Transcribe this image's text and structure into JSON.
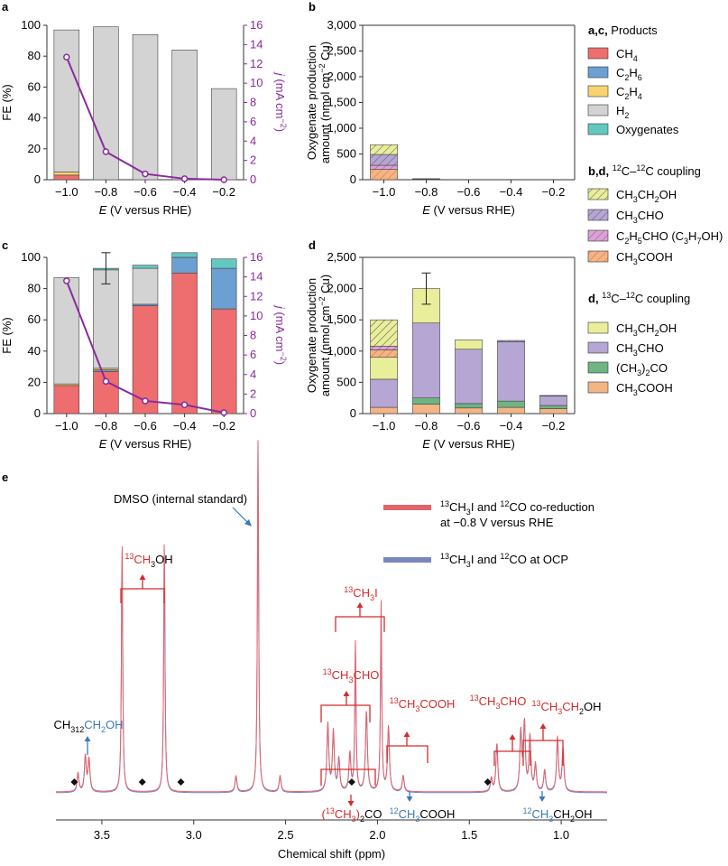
{
  "colors": {
    "ch4": "#ee6d6e",
    "c2h6": "#6c9fd2",
    "c2h4": "#f7d471",
    "h2": "#d3d3d3",
    "oxygenates": "#63c8c0",
    "line": "#8a2a9e",
    "ethanol": "#e8ee9a",
    "acetaldehyde": "#b5a6d3",
    "acetone": "#6fb483",
    "acetic": "#f3b486",
    "propanal": "#d9a3d3",
    "spec_red": "#e0646c",
    "spec_blue": "#7a86c0",
    "label_red": "#d62b2b",
    "label_blue": "#3a79b7"
  },
  "panel_labels": {
    "a": "a",
    "b": "b",
    "c": "c",
    "d": "d",
    "e": "e"
  },
  "legend": {
    "ac_prefix": "a,c,",
    "ac_title": " Products",
    "products": [
      {
        "key": "ch4",
        "main": "CH",
        "sub": "4",
        "tail": ""
      },
      {
        "key": "c2h6",
        "main": "C",
        "sub": "2",
        "mid": "H",
        "sub2": "6"
      },
      {
        "key": "c2h4",
        "main": "C",
        "sub": "2",
        "mid": "H",
        "sub2": "4"
      },
      {
        "key": "h2",
        "main": "H",
        "sub": "2",
        "tail": ""
      },
      {
        "key": "oxygenates",
        "main": "Oxygenates",
        "sub": "",
        "tail": ""
      }
    ],
    "bd_prefix": "b,d,",
    "bd_sup1": "12",
    "bd_mid": "C–",
    "bd_sup2": "12",
    "bd_tail": "C coupling",
    "bd_items": [
      "CH3CH2OH",
      "CH3CHO",
      "C2H5CHO (C3H7OH)",
      "CH3COOH"
    ],
    "d_prefix": "d,",
    "d_sup1": "13",
    "d_mid": "C–",
    "d_sup2": "12",
    "d_tail": "C coupling",
    "d_items": [
      "CH3CH2OH",
      "CH3CHO",
      "(CH3)2CO",
      "CH3COOH"
    ]
  },
  "chart_data": [
    {
      "panel": "a",
      "type": "bar",
      "categories": [
        "−1.0",
        "−0.8",
        "−0.6",
        "−0.4",
        "−0.2"
      ],
      "series": [
        {
          "name": "CH4",
          "values": [
            3,
            0,
            0,
            0,
            0
          ]
        },
        {
          "name": "C2H6",
          "values": [
            0,
            0,
            0,
            0,
            0
          ]
        },
        {
          "name": "C2H4",
          "values": [
            2,
            0,
            0,
            0,
            0
          ]
        },
        {
          "name": "H2",
          "values": [
            92,
            99,
            94,
            84,
            59
          ]
        },
        {
          "name": "Oxygenates",
          "values": [
            0,
            0,
            0,
            0,
            0
          ]
        }
      ],
      "line": {
        "name": "j (mA cm−2)",
        "x": [
          -1.0,
          -0.8,
          -0.6,
          -0.4,
          -0.2
        ],
        "values": [
          12.7,
          2.9,
          0.6,
          0.1,
          0.0
        ]
      },
      "ylim": [
        0,
        100
      ],
      "y2lim": [
        0,
        16
      ],
      "yticks": [
        "0",
        "20",
        "40",
        "60",
        "80",
        "100"
      ],
      "y2ticks": [
        "0",
        "2",
        "4",
        "6",
        "8",
        "10",
        "12",
        "14",
        "16"
      ],
      "ylabel": "FE (%)",
      "y2label_main": "j (mA cm",
      "y2label_sup": "−2",
      "y2label_end": ")",
      "xlabel_italic": "E",
      "xlabel_rest": " (V versus RHE)"
    },
    {
      "panel": "b",
      "type": "bar",
      "categories": [
        "−1.0",
        "−0.8",
        "−0.6",
        "−0.4",
        "−0.2"
      ],
      "series": [
        {
          "name": "CH3COOH",
          "values": [
            200,
            5,
            0,
            0,
            0
          ]
        },
        {
          "name": "C2H5CHO (C3H7OH)",
          "values": [
            80,
            5,
            0,
            0,
            0
          ]
        },
        {
          "name": "CH3CHO",
          "values": [
            210,
            5,
            0,
            0,
            0
          ]
        },
        {
          "name": "CH3CH2OH",
          "values": [
            190,
            5,
            0,
            0,
            0
          ]
        }
      ],
      "ylim": [
        0,
        3000
      ],
      "yticks": [
        "0",
        "500",
        "1,000",
        "1,500",
        "2,000",
        "2,500",
        "3,000"
      ],
      "ylabel_line1": "Oxygenate production",
      "ylabel_line2": "amount (nmol cm",
      "ylabel_sup": "−2",
      "ylabel_end": " Cu)",
      "xlabel_italic": "E",
      "xlabel_rest": " (V versus RHE)"
    },
    {
      "panel": "c",
      "type": "bar",
      "categories": [
        "−1.0",
        "−0.8",
        "−0.6",
        "−0.4",
        "−0.2"
      ],
      "series": [
        {
          "name": "CH4",
          "values": [
            18,
            27,
            69,
            90,
            67
          ]
        },
        {
          "name": "C2H6",
          "values": [
            0,
            1,
            1,
            10,
            26
          ]
        },
        {
          "name": "C2H4",
          "values": [
            1,
            1,
            0,
            0,
            0
          ]
        },
        {
          "name": "H2",
          "values": [
            68,
            63,
            23,
            0,
            0
          ]
        },
        {
          "name": "Oxygenates",
          "values": [
            0,
            1,
            2,
            3,
            6
          ]
        }
      ],
      "errors": [
        0,
        10,
        0,
        0,
        0
      ],
      "line": {
        "name": "j (mA cm−2)",
        "x": [
          -1.0,
          -0.8,
          -0.6,
          -0.4,
          -0.2
        ],
        "values": [
          13.6,
          3.3,
          1.3,
          0.9,
          0.1
        ]
      },
      "ylim": [
        0,
        100
      ],
      "y2lim": [
        0,
        16
      ],
      "yticks": [
        "0",
        "20",
        "40",
        "60",
        "80",
        "100"
      ],
      "y2ticks": [
        "0",
        "2",
        "4",
        "6",
        "8",
        "10",
        "12",
        "14",
        "16"
      ],
      "ylabel": "FE (%)",
      "y2label_main": "j (mA cm",
      "y2label_sup": "−2",
      "y2label_end": ")",
      "xlabel_italic": "E",
      "xlabel_rest": " (V versus RHE)"
    },
    {
      "panel": "d",
      "type": "bar",
      "categories": [
        "−1.0",
        "−0.8",
        "−0.6",
        "−0.4",
        "−0.2"
      ],
      "series": [
        {
          "name": "13C CH3COOH",
          "values": [
            100,
            150,
            90,
            100,
            80
          ]
        },
        {
          "name": "13C (CH3)2CO",
          "values": [
            0,
            100,
            70,
            100,
            50
          ]
        },
        {
          "name": "13C CH3CHO",
          "values": [
            450,
            1200,
            870,
            950,
            150
          ]
        },
        {
          "name": "13C CH3CH2OH",
          "values": [
            350,
            550,
            150,
            0,
            0
          ]
        },
        {
          "name": "12C CH3COOH",
          "values": [
            120,
            0,
            0,
            0,
            0
          ]
        },
        {
          "name": "12C C2H5CHO (C3H7OH)",
          "values": [
            60,
            0,
            0,
            0,
            0
          ]
        },
        {
          "name": "12C CH3CHO",
          "values": [
            0,
            0,
            0,
            20,
            10
          ]
        },
        {
          "name": "12C CH3CH2OH",
          "values": [
            420,
            0,
            0,
            0,
            0
          ]
        }
      ],
      "errors": [
        0,
        250,
        0,
        0,
        0
      ],
      "ylim": [
        0,
        2500
      ],
      "yticks": [
        "0",
        "500",
        "1,000",
        "1,500",
        "2,000",
        "2,500"
      ],
      "ylabel_line1": "Oxygenate production",
      "ylabel_line2": "amount (nmol cm",
      "ylabel_sup": "−2",
      "ylabel_end": " Cu)",
      "xlabel_italic": "E",
      "xlabel_rest": " (V versus RHE)"
    },
    {
      "panel": "e",
      "type": "line",
      "xlabel": "Chemical shift (ppm)",
      "xlim": [
        3.75,
        0.75
      ],
      "xticks": [
        "3.5",
        "3.0",
        "2.5",
        "2.0",
        "1.5",
        "1.0"
      ],
      "series": [
        {
          "name": "13CH3I and 12CO co-reduction at −0.8 V versus RHE"
        },
        {
          "name": "13CH3I and 12CO at OCP"
        }
      ],
      "peaks": [
        {
          "ppm": 3.63,
          "h": 0.07
        },
        {
          "ppm": 3.59,
          "h": 0.13
        },
        {
          "ppm": 3.57,
          "h": 0.12
        },
        {
          "ppm": 3.39,
          "h": 0.95
        },
        {
          "ppm": 3.16,
          "h": 0.95
        },
        {
          "ppm": 2.65,
          "h": 1.3
        },
        {
          "ppm": 2.77,
          "h": 0.06
        },
        {
          "ppm": 2.53,
          "h": 0.06
        },
        {
          "ppm": 2.27,
          "h": 0.25
        },
        {
          "ppm": 2.24,
          "h": 0.22
        },
        {
          "ppm": 2.21,
          "h": 0.12
        },
        {
          "ppm": 2.15,
          "h": 0.14
        },
        {
          "ppm": 2.12,
          "h": 0.55
        },
        {
          "ppm": 2.06,
          "h": 0.3
        },
        {
          "ppm": 1.98,
          "h": 0.7
        },
        {
          "ppm": 1.94,
          "h": 0.24
        },
        {
          "ppm": 1.86,
          "h": 0.06
        },
        {
          "ppm": 1.38,
          "h": 0.05
        },
        {
          "ppm": 1.35,
          "h": 0.18
        },
        {
          "ppm": 1.22,
          "h": 0.22
        },
        {
          "ppm": 1.2,
          "h": 0.25
        },
        {
          "ppm": 1.17,
          "h": 0.2
        },
        {
          "ppm": 1.14,
          "h": 0.1
        },
        {
          "ppm": 1.09,
          "h": 0.08
        },
        {
          "ppm": 1.02,
          "h": 0.2
        },
        {
          "ppm": 0.99,
          "h": 0.16
        }
      ],
      "diamonds": [
        3.65,
        3.28,
        3.07,
        2.14,
        1.4
      ],
      "annotations": {
        "dmso": "DMSO (internal standard)",
        "methanol": "13CH3OH",
        "iodide": "13CH3I",
        "acetaldehyde": "13CH3CHO",
        "acetic": "13CH3COOH",
        "acetaldehyde2": "13CH3CHO",
        "ethanol": "13CH3CH2OH",
        "ethanol12": "CH312CH2OH",
        "acetone": "(13CH3)2CO",
        "acetic12": "12CH3COOH",
        "ethanol12b": "12CH3CH2OH"
      }
    }
  ]
}
